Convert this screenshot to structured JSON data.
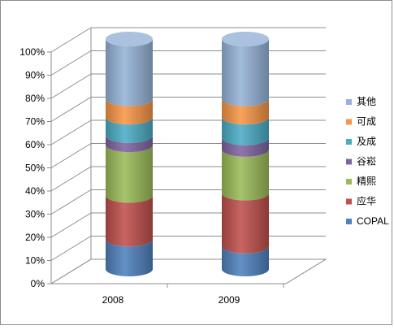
{
  "chart_data": {
    "type": "bar",
    "stacked": true,
    "percent_stacked": true,
    "style": "3d-cylinder",
    "categories": [
      "2008",
      "2009"
    ],
    "series": [
      {
        "name": "COPAL",
        "color": "#4F81BD",
        "values": [
          13,
          10
        ]
      },
      {
        "name": "应华",
        "color": "#C0504D",
        "values": [
          19,
          23
        ]
      },
      {
        "name": "精熙",
        "color": "#9BBB59",
        "values": [
          22,
          19
        ]
      },
      {
        "name": "谷崧",
        "color": "#8064A2",
        "values": [
          4,
          5
        ]
      },
      {
        "name": "及成",
        "color": "#4BACC6",
        "values": [
          8,
          9
        ]
      },
      {
        "name": "可成",
        "color": "#F79646",
        "values": [
          8,
          8
        ]
      },
      {
        "name": "其他",
        "color": "#95B3D7",
        "values": [
          26,
          26
        ]
      }
    ],
    "y_ticks": [
      "0%",
      "10%",
      "20%",
      "30%",
      "40%",
      "50%",
      "60%",
      "70%",
      "80%",
      "90%",
      "100%"
    ],
    "ylim": [
      0,
      100
    ],
    "grid": true,
    "legend_position": "right"
  }
}
